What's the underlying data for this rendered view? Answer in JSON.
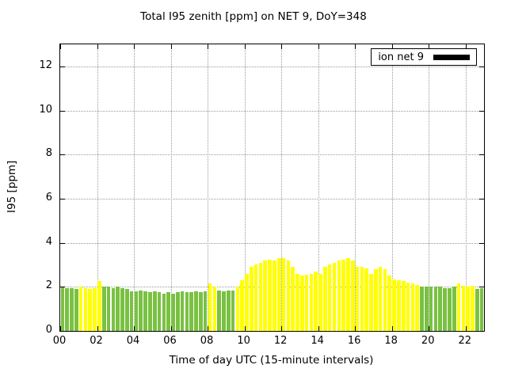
{
  "chart_data": {
    "type": "bar",
    "title": "Total I95 zenith [ppm] on NET 9, DoY=348",
    "xlabel": "Time of day UTC (15-minute intervals)",
    "ylabel": "I95 [ppm]",
    "legend": {
      "label": "ion net 9",
      "swatch_color": "#000000",
      "position": "top-right"
    },
    "xlim": [
      0,
      23
    ],
    "ylim": [
      0,
      13
    ],
    "xticks": [
      0,
      2,
      4,
      6,
      8,
      10,
      12,
      14,
      16,
      18,
      20,
      22
    ],
    "xtick_labels": [
      "00",
      "02",
      "04",
      "06",
      "08",
      "10",
      "12",
      "14",
      "16",
      "18",
      "20",
      "22"
    ],
    "yticks": [
      0,
      2,
      4,
      6,
      8,
      10,
      12
    ],
    "ytick_labels": [
      "0",
      "2",
      "4",
      "6",
      "8",
      "10",
      "12"
    ],
    "grid": true,
    "interval_minutes": 15,
    "bar_colors": {
      "green": "#7ac143",
      "yellow": "#ffff00"
    },
    "times": [
      "00:00",
      "00:15",
      "00:30",
      "00:45",
      "01:00",
      "01:15",
      "01:30",
      "01:45",
      "02:00",
      "02:15",
      "02:30",
      "02:45",
      "03:00",
      "03:15",
      "03:30",
      "03:45",
      "04:00",
      "04:15",
      "04:30",
      "04:45",
      "05:00",
      "05:15",
      "05:30",
      "05:45",
      "06:00",
      "06:15",
      "06:30",
      "06:45",
      "07:00",
      "07:15",
      "07:30",
      "07:45",
      "08:00",
      "08:15",
      "08:30",
      "08:45",
      "09:00",
      "09:15",
      "09:30",
      "09:45",
      "10:00",
      "10:15",
      "10:30",
      "10:45",
      "11:00",
      "11:15",
      "11:30",
      "11:45",
      "12:00",
      "12:15",
      "12:30",
      "12:45",
      "13:00",
      "13:15",
      "13:30",
      "13:45",
      "14:00",
      "14:15",
      "14:30",
      "14:45",
      "15:00",
      "15:15",
      "15:30",
      "15:45",
      "16:00",
      "16:15",
      "16:30",
      "16:45",
      "17:00",
      "17:15",
      "17:30",
      "17:45",
      "18:00",
      "18:15",
      "18:30",
      "18:45",
      "19:00",
      "19:15",
      "19:30",
      "19:45",
      "20:00",
      "20:15",
      "20:30",
      "20:45",
      "21:00",
      "21:15",
      "21:30",
      "21:45",
      "22:00",
      "22:15",
      "22:30",
      "22:45"
    ],
    "values": [
      2.0,
      1.95,
      1.95,
      1.9,
      2.0,
      1.95,
      1.9,
      1.95,
      2.25,
      2.0,
      2.0,
      1.95,
      2.0,
      1.95,
      1.9,
      1.8,
      1.8,
      1.85,
      1.8,
      1.75,
      1.8,
      1.75,
      1.7,
      1.75,
      1.7,
      1.75,
      1.8,
      1.75,
      1.75,
      1.8,
      1.75,
      1.8,
      2.15,
      2.0,
      1.85,
      1.8,
      1.85,
      1.85,
      2.0,
      2.3,
      2.6,
      2.9,
      3.0,
      3.1,
      3.2,
      3.25,
      3.2,
      3.3,
      3.3,
      3.2,
      2.9,
      2.6,
      2.5,
      2.55,
      2.6,
      2.7,
      2.6,
      2.9,
      3.0,
      3.1,
      3.2,
      3.25,
      3.3,
      3.2,
      2.9,
      2.9,
      2.85,
      2.6,
      2.8,
      2.9,
      2.8,
      2.5,
      2.35,
      2.3,
      2.25,
      2.2,
      2.15,
      2.1,
      2.0,
      2.0,
      2.0,
      2.0,
      2.0,
      1.95,
      1.95,
      2.0,
      2.15,
      2.05,
      2.0,
      2.05,
      1.9,
      1.95
    ],
    "colors": [
      "green",
      "green",
      "green",
      "green",
      "yellow",
      "yellow",
      "yellow",
      "yellow",
      "yellow",
      "green",
      "green",
      "green",
      "green",
      "green",
      "green",
      "green",
      "green",
      "green",
      "green",
      "green",
      "green",
      "green",
      "green",
      "green",
      "green",
      "green",
      "green",
      "green",
      "green",
      "green",
      "green",
      "green",
      "yellow",
      "yellow",
      "green",
      "green",
      "green",
      "green",
      "yellow",
      "yellow",
      "yellow",
      "yellow",
      "yellow",
      "yellow",
      "yellow",
      "yellow",
      "yellow",
      "yellow",
      "yellow",
      "yellow",
      "yellow",
      "yellow",
      "yellow",
      "yellow",
      "yellow",
      "yellow",
      "yellow",
      "yellow",
      "yellow",
      "yellow",
      "yellow",
      "yellow",
      "yellow",
      "yellow",
      "yellow",
      "yellow",
      "yellow",
      "yellow",
      "yellow",
      "yellow",
      "yellow",
      "yellow",
      "yellow",
      "yellow",
      "yellow",
      "yellow",
      "yellow",
      "yellow",
      "green",
      "green",
      "green",
      "green",
      "green",
      "green",
      "green",
      "green",
      "yellow",
      "yellow",
      "yellow",
      "yellow",
      "green",
      "green"
    ]
  }
}
